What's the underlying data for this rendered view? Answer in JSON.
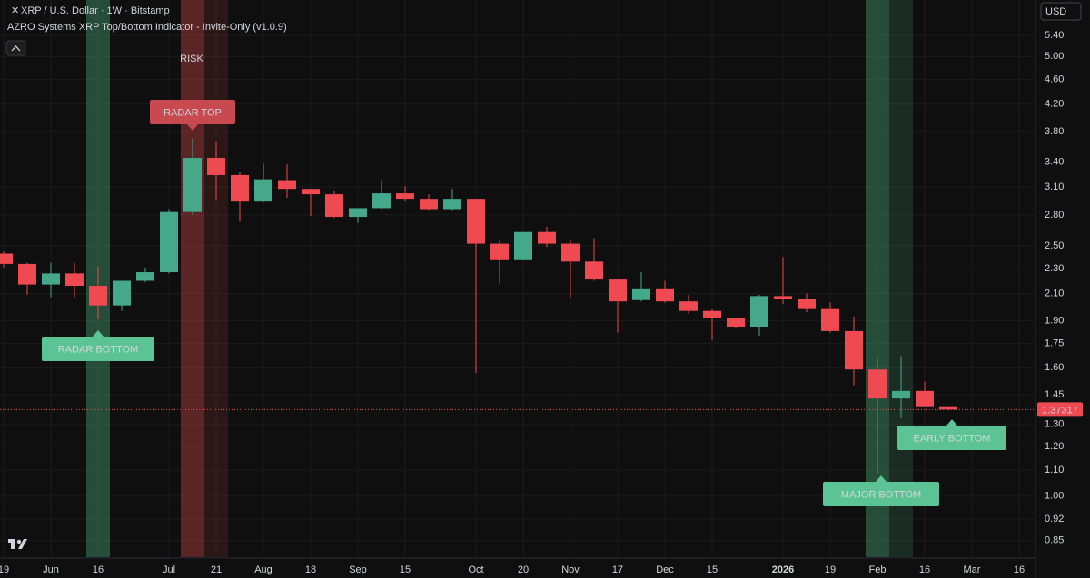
{
  "chart_data": {
    "type": "candlestick",
    "title": "XRP / U.S. Dollar · 1W · Bitstamp",
    "subtitle": "AZRO Systems XRP Top/Bottom Indicator - Invite-Only (v1.0.9)",
    "currency": "USD",
    "annotations": [
      {
        "text": "RISK"
      },
      {
        "text": "RADAR TOP"
      },
      {
        "text": "RADAR BOTTOM"
      },
      {
        "text": "MAJOR BOTTOM"
      },
      {
        "text": "EARLY BOTTOM"
      }
    ],
    "categories": [
      "19",
      null,
      "Jun",
      null,
      "16",
      null,
      null,
      "Jul",
      null,
      "21",
      null,
      "Aug",
      null,
      "18",
      null,
      "Sep",
      null,
      "15",
      null,
      null,
      "Oct",
      null,
      "20",
      null,
      "Nov",
      null,
      "17",
      null,
      "Dec",
      null,
      "15",
      null,
      null,
      "2026",
      null,
      "19",
      null,
      "Feb",
      null,
      "16",
      null,
      "Mar",
      null,
      "16"
    ],
    "open": [
      2.43,
      2.34,
      2.17,
      2.26,
      2.16,
      2.01,
      2.2,
      2.27,
      2.83,
      3.45,
      3.24,
      2.94,
      3.18,
      3.08,
      3.02,
      2.78,
      2.87,
      3.03,
      2.97,
      2.86,
      2.97,
      2.52,
      2.38,
      2.63,
      2.52,
      2.36,
      2.21,
      2.05,
      2.14,
      2.04,
      1.97,
      1.92,
      1.86,
      2.08,
      2.06,
      1.99,
      1.83,
      1.59,
      1.43,
      1.47,
      1.39,
      null,
      null,
      null
    ],
    "high": [
      2.45,
      2.35,
      2.35,
      2.35,
      2.32,
      2.2,
      2.31,
      2.86,
      3.71,
      3.65,
      3.27,
      3.38,
      3.37,
      3.08,
      3.06,
      2.87,
      3.18,
      3.11,
      3.02,
      3.08,
      2.97,
      2.55,
      2.63,
      2.68,
      2.55,
      2.57,
      2.21,
      2.27,
      2.2,
      2.09,
      1.99,
      1.92,
      2.09,
      2.4,
      2.1,
      2.03,
      1.93,
      1.66,
      1.67,
      1.52,
      1.39,
      null,
      null,
      null
    ],
    "low": [
      2.31,
      2.09,
      2.07,
      2.07,
      1.91,
      1.97,
      2.19,
      2.26,
      2.8,
      2.96,
      2.73,
      2.93,
      2.98,
      2.79,
      2.77,
      2.72,
      2.86,
      2.94,
      2.85,
      2.85,
      1.57,
      2.18,
      2.37,
      2.49,
      2.07,
      2.2,
      1.82,
      2.04,
      2.03,
      1.95,
      1.77,
      1.85,
      1.8,
      2.02,
      1.96,
      1.82,
      1.5,
      1.09,
      1.33,
      1.39,
      1.37,
      null,
      null,
      null
    ],
    "close": [
      2.34,
      2.17,
      2.26,
      2.16,
      2.01,
      2.2,
      2.27,
      2.83,
      3.45,
      3.24,
      2.94,
      3.19,
      3.08,
      3.02,
      2.78,
      2.87,
      3.03,
      2.97,
      2.86,
      2.97,
      2.52,
      2.38,
      2.63,
      2.52,
      2.36,
      2.21,
      2.04,
      2.14,
      2.04,
      1.97,
      1.92,
      1.86,
      2.08,
      2.06,
      1.99,
      1.83,
      1.59,
      1.43,
      1.47,
      1.39,
      1.37317,
      null,
      null,
      null
    ],
    "up_color": "#45a88a",
    "down_color": "#ef4a52",
    "last_price": 1.37317,
    "log_scale": true,
    "grid": true,
    "ylim": [
      0.8,
      6.15
    ],
    "yticks": [
      0.85,
      0.92,
      {
        "value": 1.0,
        "label": "1.00"
      },
      {
        "value": 1.1,
        "label": "1.10"
      },
      {
        "value": 1.2,
        "label": "1.20"
      },
      {
        "value": 1.3,
        "label": "1.30"
      },
      1.45,
      {
        "value": 1.6,
        "label": "1.60"
      },
      1.75,
      {
        "value": 1.9,
        "label": "1.90"
      },
      {
        "value": 2.1,
        "label": "2.10"
      },
      {
        "value": 2.3,
        "label": "2.30"
      },
      {
        "value": 2.5,
        "label": "2.50"
      },
      {
        "value": 2.8,
        "label": "2.80"
      },
      {
        "value": 3.1,
        "label": "3.10"
      },
      {
        "value": 3.4,
        "label": "3.40"
      },
      {
        "value": 3.8,
        "label": "3.80"
      },
      {
        "value": 4.2,
        "label": "4.20"
      },
      {
        "value": 4.6,
        "label": "4.60"
      },
      {
        "value": 5.0,
        "label": "5.00"
      },
      {
        "value": 5.4,
        "label": "5.40"
      }
    ]
  }
}
